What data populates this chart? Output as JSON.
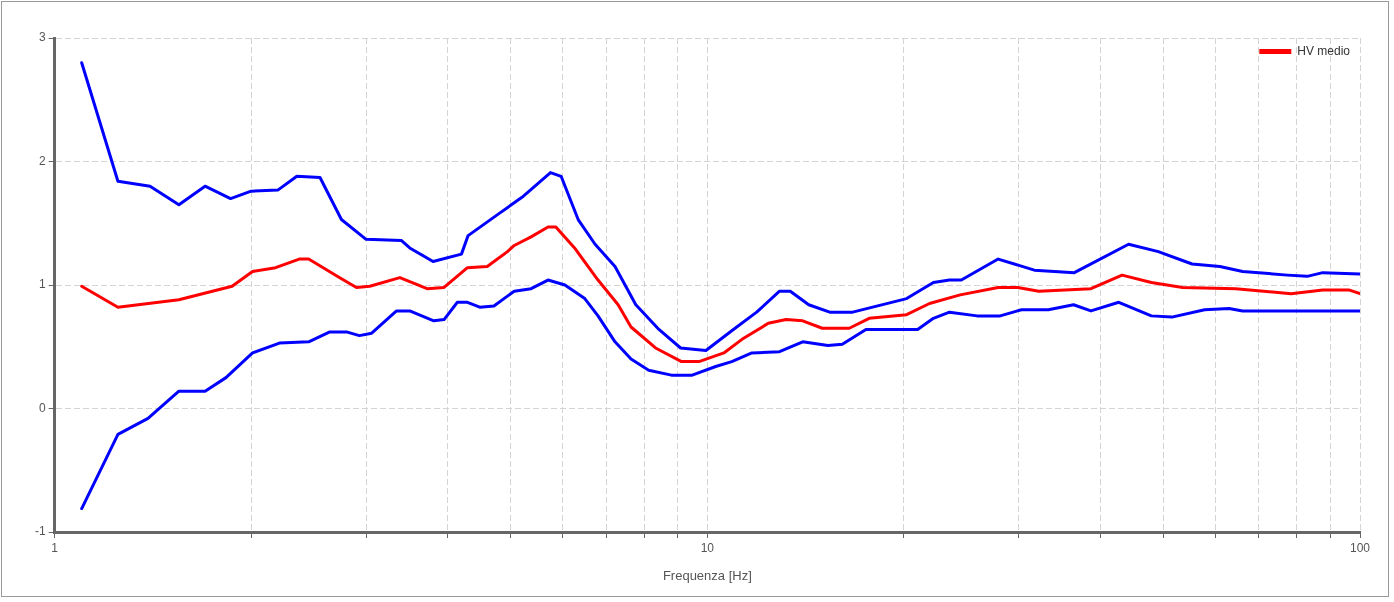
{
  "chart_data": {
    "type": "line",
    "xlabel": "Frequenza [Hz]",
    "log": "x",
    "grid": true,
    "legend": "top right",
    "marker": "none",
    "line_style": "solid",
    "xlim": [
      1,
      100
    ],
    "ylim": [
      -1,
      3
    ],
    "xticks": [
      1,
      {
        "value": 2,
        "label": null
      },
      {
        "value": 3,
        "label": null
      },
      {
        "value": 4,
        "label": null
      },
      {
        "value": 5,
        "label": null
      },
      {
        "value": 6,
        "label": null
      },
      {
        "value": 7,
        "label": null
      },
      {
        "value": 8,
        "label": null
      },
      {
        "value": 9,
        "label": null
      },
      10,
      {
        "value": 20,
        "label": null
      },
      {
        "value": 30,
        "label": null
      },
      {
        "value": 40,
        "label": null
      },
      {
        "value": 50,
        "label": null
      },
      {
        "value": 60,
        "label": null
      },
      {
        "value": 70,
        "label": null
      },
      {
        "value": 80,
        "label": null
      },
      {
        "value": 90,
        "label": null
      },
      100
    ],
    "yticks": [
      -1,
      0,
      1,
      2,
      3
    ],
    "series": [
      {
        "color": "#0000ff",
        "x": [
          1.1,
          1.25,
          1.4,
          1.55,
          1.7,
          1.86,
          2,
          2.2,
          2.35,
          2.55,
          2.75,
          3,
          3.4,
          3.5,
          3.8,
          4.2,
          4.3,
          4.8,
          5.2,
          5.75,
          5.97,
          6.34,
          6.73,
          7.22,
          7.77,
          8.43,
          9.1,
          9.95,
          10.9,
          11.9,
          12.9,
          13.4,
          14.3,
          15.4,
          16.7,
          20.2,
          22.2,
          23.5,
          24.5,
          27.9,
          31.7,
          36.5,
          44.2,
          49.1,
          55.3,
          61,
          66.1,
          77.4,
          83,
          87.7,
          100
        ],
        "values": [
          2.8,
          1.84,
          1.8,
          1.65,
          1.8,
          1.7,
          1.76,
          1.77,
          1.88,
          1.87,
          1.53,
          1.37,
          1.36,
          1.3,
          1.19,
          1.25,
          1.4,
          1.58,
          1.71,
          1.91,
          1.88,
          1.53,
          1.33,
          1.15,
          0.84,
          0.64,
          0.49,
          0.47,
          0.63,
          0.78,
          0.95,
          0.95,
          0.84,
          0.78,
          0.78,
          0.89,
          1.02,
          1.04,
          1.04,
          1.21,
          1.12,
          1.1,
          1.33,
          1.27,
          1.17,
          1.15,
          1.11,
          1.08,
          1.07,
          1.1,
          1.09
        ]
      },
      {
        "color": "#0000ff",
        "x": [
          1.1,
          1.25,
          1.39,
          1.55,
          1.7,
          1.83,
          2.01,
          2.21,
          2.45,
          2.64,
          2.8,
          2.93,
          3.06,
          3.34,
          3.5,
          3.81,
          3.95,
          4.14,
          4.29,
          4.48,
          4.71,
          4.94,
          5.06,
          5.37,
          5.7,
          6.05,
          6.49,
          6.8,
          7.22,
          7.64,
          8.13,
          8.81,
          9.48,
          10.3,
          10.9,
          11.7,
          12.9,
          14,
          15.3,
          16.1,
          17.5,
          19,
          21,
          22.2,
          23.5,
          25.9,
          28.1,
          30.3,
          33.3,
          36.4,
          38.7,
          42.7,
          47.9,
          51.5,
          57.8,
          63,
          66.1,
          100
        ],
        "values": [
          -0.81,
          -0.21,
          -0.08,
          0.14,
          0.14,
          0.25,
          0.45,
          0.53,
          0.54,
          0.62,
          0.62,
          0.59,
          0.61,
          0.79,
          0.79,
          0.71,
          0.72,
          0.86,
          0.86,
          0.82,
          0.83,
          0.91,
          0.95,
          0.97,
          1.04,
          1,
          0.89,
          0.75,
          0.54,
          0.4,
          0.31,
          0.27,
          0.27,
          0.34,
          0.38,
          0.45,
          0.46,
          0.54,
          0.51,
          0.52,
          0.64,
          0.64,
          0.64,
          0.73,
          0.78,
          0.75,
          0.75,
          0.8,
          0.8,
          0.84,
          0.79,
          0.86,
          0.75,
          0.74,
          0.8,
          0.81,
          0.79,
          0.79
        ]
      },
      {
        "name": "HV medio",
        "color": "#ff0000",
        "x": [
          1.1,
          1.25,
          1.55,
          1.87,
          2.01,
          2.18,
          2.37,
          2.45,
          2.73,
          2.9,
          3.04,
          3.38,
          3.72,
          3.95,
          4.29,
          4.6,
          4.94,
          5.06,
          5.37,
          5.7,
          5.86,
          6.26,
          6.8,
          7.3,
          7.64,
          8.33,
          9.13,
          9.71,
          10.6,
          11.3,
          12.4,
          13.2,
          14,
          15,
          16.5,
          17.7,
          20.2,
          21.9,
          24.4,
          27.9,
          29.9,
          32.2,
          38.7,
          43.2,
          47.9,
          53.5,
          64.5,
          78.4,
          87.7,
          96.1,
          100
        ],
        "values": [
          0.99,
          0.82,
          0.88,
          0.99,
          1.11,
          1.14,
          1.21,
          1.21,
          1.06,
          0.98,
          0.99,
          1.06,
          0.97,
          0.98,
          1.14,
          1.15,
          1.27,
          1.32,
          1.39,
          1.47,
          1.47,
          1.3,
          1.04,
          0.84,
          0.66,
          0.49,
          0.38,
          0.38,
          0.45,
          0.56,
          0.69,
          0.72,
          0.71,
          0.65,
          0.65,
          0.73,
          0.76,
          0.85,
          0.92,
          0.98,
          0.98,
          0.95,
          0.97,
          1.08,
          1.02,
          0.98,
          0.97,
          0.93,
          0.96,
          0.96,
          0.93
        ]
      }
    ]
  }
}
